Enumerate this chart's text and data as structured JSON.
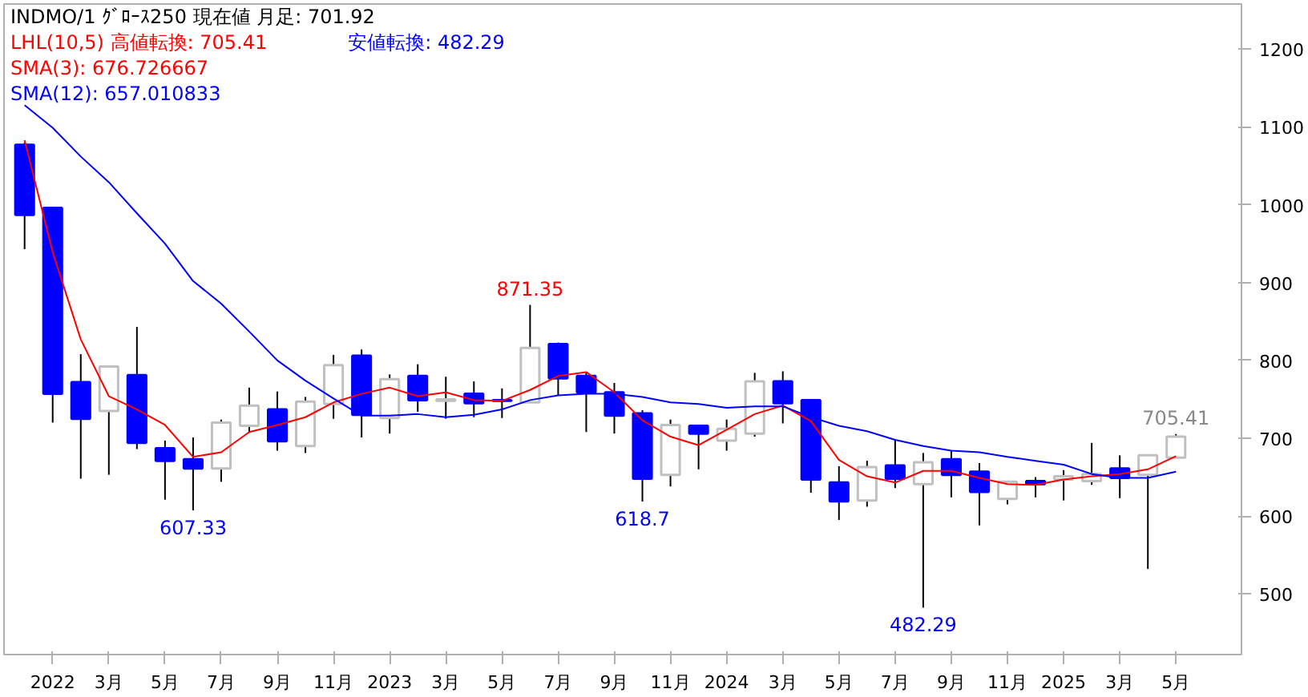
{
  "chart_data": {
    "type": "candlestick",
    "title": "INDMO/1 ｸﾞﾛｰｽ250  現在値 月足: 701.92",
    "annotations": [
      "LHL(10,5) 高値転換: 705.41",
      "安値転換: 482.29",
      {
        "text": "607.33",
        "x": "2022-06",
        "y": 607.33
      },
      {
        "text": "871.35",
        "x": "2023-06",
        "y": 871.35
      },
      {
        "text": "618.7",
        "x": "2023-10",
        "y": 618.7
      },
      {
        "text": "482.29",
        "x": "2024-08",
        "y": 482.29
      },
      {
        "text": "705.41",
        "x": "2025-05",
        "y": 705.41
      }
    ],
    "x": [
      "2021-12",
      "2022-01",
      "2022-02",
      "2022-03",
      "2022-04",
      "2022-05",
      "2022-06",
      "2022-07",
      "2022-08",
      "2022-09",
      "2022-10",
      "2022-11",
      "2022-12",
      "2023-01",
      "2023-02",
      "2023-03",
      "2023-04",
      "2023-05",
      "2023-06",
      "2023-07",
      "2023-08",
      "2023-09",
      "2023-10",
      "2023-11",
      "2023-12",
      "2024-01",
      "2024-02",
      "2024-03",
      "2024-04",
      "2024-05",
      "2024-06",
      "2024-07",
      "2024-08",
      "2024-09",
      "2024-10",
      "2024-11",
      "2024-12",
      "2025-01",
      "2025-02",
      "2025-03",
      "2025-04",
      "2025-05"
    ],
    "ohlc": [
      [
        1077,
        1080,
        943,
        987
      ],
      [
        996,
        996,
        720,
        757
      ],
      [
        772,
        808,
        648,
        725
      ],
      [
        735,
        792,
        653,
        792
      ],
      [
        781,
        843,
        686,
        694
      ],
      [
        687,
        697,
        621,
        671
      ],
      [
        673,
        701,
        607.33,
        661
      ],
      [
        661,
        724,
        644,
        720
      ],
      [
        716,
        765,
        708,
        742
      ],
      [
        737,
        760,
        684,
        696
      ],
      [
        690,
        753,
        681,
        747
      ],
      [
        744,
        807,
        725,
        794
      ],
      [
        806,
        814,
        701,
        730
      ],
      [
        726,
        782,
        706,
        776
      ],
      [
        780,
        795,
        734,
        749
      ],
      [
        748,
        779,
        725,
        750
      ],
      [
        757,
        773,
        727,
        745
      ],
      [
        749,
        764,
        726,
        748
      ],
      [
        746,
        871.35,
        746,
        816
      ],
      [
        821,
        823,
        755,
        777
      ],
      [
        780,
        784,
        708,
        759
      ],
      [
        759,
        771,
        706,
        729
      ],
      [
        732,
        736,
        618.7,
        648
      ],
      [
        653,
        724,
        638,
        717
      ],
      [
        716,
        716,
        660,
        706
      ],
      [
        697,
        724,
        684,
        712
      ],
      [
        706,
        784,
        702,
        773
      ],
      [
        773,
        786,
        719,
        745
      ],
      [
        749,
        749,
        630,
        647
      ],
      [
        643,
        664,
        595,
        619
      ],
      [
        620,
        671,
        612,
        663
      ],
      [
        665,
        698,
        636,
        648
      ],
      [
        641,
        681,
        482.29,
        669
      ],
      [
        673,
        684,
        624,
        653
      ],
      [
        657,
        668,
        588,
        631
      ],
      [
        622,
        644,
        615,
        644
      ],
      [
        645,
        650,
        624,
        641
      ],
      [
        647,
        659,
        620,
        651
      ],
      [
        645,
        694,
        640,
        654
      ],
      [
        661,
        678,
        623,
        649
      ],
      [
        653,
        678,
        532,
        678
      ],
      [
        675,
        705.41,
        675,
        701.92
      ]
    ],
    "colors": [
      "#0000ff",
      "#0000ff",
      "#0000ff",
      "#ffffff",
      "#0000ff",
      "#0000ff",
      "#0000ff",
      "#ffffff",
      "#ffffff",
      "#0000ff",
      "#ffffff",
      "#ffffff",
      "#0000ff",
      "#ffffff",
      "#0000ff",
      "#ffffff",
      "#0000ff",
      "#0000ff",
      "#ffffff",
      "#0000ff",
      "#0000ff",
      "#0000ff",
      "#0000ff",
      "#ffffff",
      "#0000ff",
      "#ffffff",
      "#ffffff",
      "#0000ff",
      "#0000ff",
      "#0000ff",
      "#ffffff",
      "#0000ff",
      "#ffffff",
      "#0000ff",
      "#0000ff",
      "#ffffff",
      "#0000ff",
      "#ffffff",
      "#ffffff",
      "#0000ff",
      "#ffffff",
      "#ffffff"
    ],
    "series": [
      {
        "type": "line",
        "name": "SMA(3): 676.726667",
        "color": "#ff0000",
        "values": [
          1083,
          939,
          827,
          754,
          737,
          717,
          676,
          682,
          708,
          717,
          727,
          746,
          757,
          765,
          754,
          759,
          749,
          748,
          762,
          780,
          785,
          759,
          723,
          702,
          691,
          711,
          731,
          742,
          722,
          672,
          651,
          643,
          658,
          658,
          649,
          641,
          640,
          647,
          651,
          654,
          660,
          677
        ]
      },
      {
        "type": "line",
        "name": "SMA(12): 657.010833",
        "color": "#0000ff",
        "values": [
          1128,
          1099,
          1062,
          1029,
          989,
          950,
          902,
          873,
          837,
          800,
          774,
          751,
          729,
          729,
          731,
          727,
          730,
          737,
          749,
          755,
          757,
          757,
          753,
          746,
          744,
          739,
          741,
          741,
          727,
          716,
          709,
          698,
          690,
          684,
          682,
          676,
          671,
          666,
          654,
          649,
          649,
          657
        ]
      }
    ],
    "xlim": [
      "2021-11-09",
      "2025-07-11"
    ],
    "xticks": [
      {
        "value": "2022-01",
        "label": "2022"
      },
      {
        "value": "2022-03",
        "label": "3月"
      },
      {
        "value": "2022-05",
        "label": "5月"
      },
      {
        "value": "2022-07",
        "label": "7月"
      },
      {
        "value": "2022-09",
        "label": "9月"
      },
      {
        "value": "2022-11",
        "label": "11月"
      },
      {
        "value": "2023-01",
        "label": "2023"
      },
      {
        "value": "2023-03",
        "label": "3月"
      },
      {
        "value": "2023-05",
        "label": "5月"
      },
      {
        "value": "2023-07",
        "label": "7月"
      },
      {
        "value": "2023-09",
        "label": "9月"
      },
      {
        "value": "2023-11",
        "label": "11月"
      },
      {
        "value": "2024-01",
        "label": "2024"
      },
      {
        "value": "2024-03",
        "label": "3月"
      },
      {
        "value": "2024-05",
        "label": "5月"
      },
      {
        "value": "2024-07",
        "label": "7月"
      },
      {
        "value": "2024-09",
        "label": "9月"
      },
      {
        "value": "2024-11",
        "label": "11月"
      },
      {
        "value": "2025-01",
        "label": "2025"
      },
      {
        "value": "2025-03",
        "label": "3月"
      },
      {
        "value": "2025-05",
        "label": "5月"
      }
    ],
    "ylim": [
      422,
      1258
    ],
    "yticks": [
      500,
      600,
      700,
      800,
      900,
      1000,
      1100,
      1200
    ],
    "grid": false
  }
}
